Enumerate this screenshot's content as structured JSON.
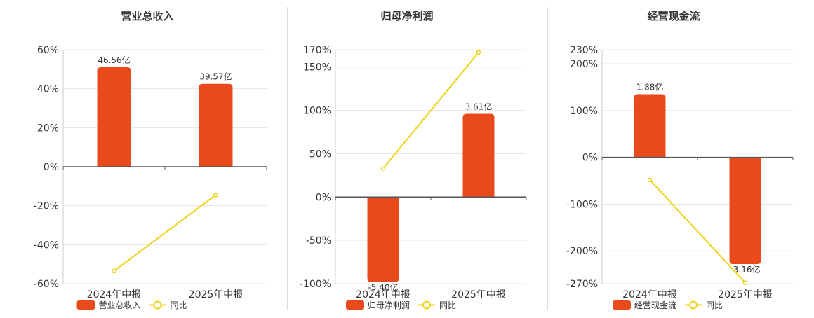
{
  "colors": {
    "bar": "#e84a1c",
    "line": "#ecd219",
    "axis": "#555555",
    "grid": "#e6e6e6",
    "divider": "#bdbdbd",
    "text": "#333333"
  },
  "line_legend_label": "同比",
  "chart_data": [
    {
      "type": "bar",
      "title": "营业总收入",
      "categories": [
        "2024年中报",
        "2025年中报"
      ],
      "ylim": [
        -60,
        60
      ],
      "yticks": [
        -60,
        -40,
        -20,
        0,
        20,
        40,
        60
      ],
      "ytick_labels": [
        "-60%",
        "-40%",
        "-20%",
        "0%",
        "20%",
        "40%",
        "60%"
      ],
      "series": [
        {
          "name": "营业总收入",
          "kind": "bar",
          "values": [
            51,
            42.5
          ],
          "labels": [
            "46.56亿",
            "39.57亿"
          ]
        },
        {
          "name": "同比",
          "kind": "line",
          "values": [
            -53.5,
            -14.5
          ]
        }
      ],
      "grid": true,
      "legend": "bottom"
    },
    {
      "type": "bar",
      "title": "归母净利润",
      "categories": [
        "2024年中报",
        "2025年中报"
      ],
      "ylim": [
        -100,
        170
      ],
      "yticks": [
        -100,
        -50,
        0,
        50,
        100,
        150,
        170
      ],
      "ytick_labels": [
        "-100%",
        "-50%",
        "0%",
        "50%",
        "100%",
        "150%",
        "170%"
      ],
      "series": [
        {
          "name": "归母净利润",
          "kind": "bar",
          "values": [
            -98,
            96
          ],
          "labels": [
            "-5.40亿",
            "3.61亿"
          ]
        },
        {
          "name": "同比",
          "kind": "line",
          "values": [
            33,
            167
          ]
        }
      ],
      "grid": true,
      "legend": "bottom"
    },
    {
      "type": "bar",
      "title": "经营现金流",
      "categories": [
        "2024年中报",
        "2025年中报"
      ],
      "ylim": [
        -270,
        230
      ],
      "yticks": [
        -270,
        -200,
        -100,
        0,
        100,
        200,
        230
      ],
      "ytick_labels": [
        "-270%",
        "-200%",
        "-100%",
        "0%",
        "100%",
        "200%",
        "230%"
      ],
      "series": [
        {
          "name": "经营现金流",
          "kind": "bar",
          "values": [
            135,
            -228
          ],
          "labels": [
            "1.88亿",
            "-3.16亿"
          ]
        },
        {
          "name": "同比",
          "kind": "line",
          "values": [
            -48,
            -268
          ]
        }
      ],
      "grid": true,
      "legend": "bottom"
    }
  ]
}
